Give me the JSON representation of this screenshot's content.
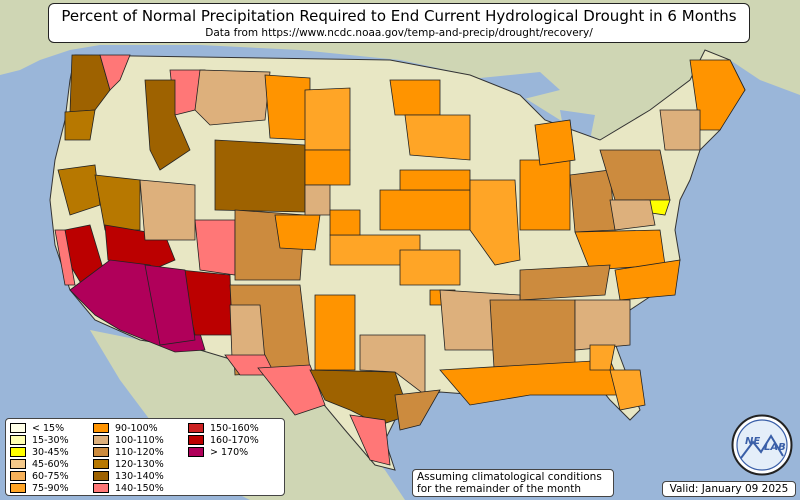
{
  "title": "Percent of Normal Precipitation Required to End Current Hydrological Drought in 6 Months",
  "subtitle": "Data from https://www.ncdc.noaa.gov/temp-and-precip/drought/recovery/",
  "note_line1": "Assuming climatological conditions",
  "note_line2": "for the remainder of the month",
  "valid": "Valid: January 09 2025",
  "logo_text_left": "NE",
  "logo_text_right": "LAB",
  "colors": {
    "ocean": "#9ab6d9",
    "land_us": "#e8e7c4",
    "land_neighbor": "#cfd6b4",
    "border": "#333333"
  },
  "legend": [
    {
      "label": "< 15%",
      "color": "#ffffe8"
    },
    {
      "label": "15-30%",
      "color": "#ffffb0"
    },
    {
      "label": "30-45%",
      "color": "#ffff00"
    },
    {
      "label": "45-60%",
      "color": "#f5c98a"
    },
    {
      "label": "60-75%",
      "color": "#f7b15a"
    },
    {
      "label": "75-90%",
      "color": "#ffa526"
    },
    {
      "label": "90-100%",
      "color": "#ff9400"
    },
    {
      "label": "100-110%",
      "color": "#ddb07c"
    },
    {
      "label": "110-120%",
      "color": "#cc8b3e"
    },
    {
      "label": "120-130%",
      "color": "#b77800"
    },
    {
      "label": "130-140%",
      "color": "#9e6200"
    },
    {
      "label": "140-150%",
      "color": "#ff7777"
    },
    {
      "label": "150-160%",
      "color": "#cc2222"
    },
    {
      "label": "160-170%",
      "color": "#bb0000"
    },
    {
      "label": "> 170%",
      "color": "#b0005a"
    }
  ]
}
